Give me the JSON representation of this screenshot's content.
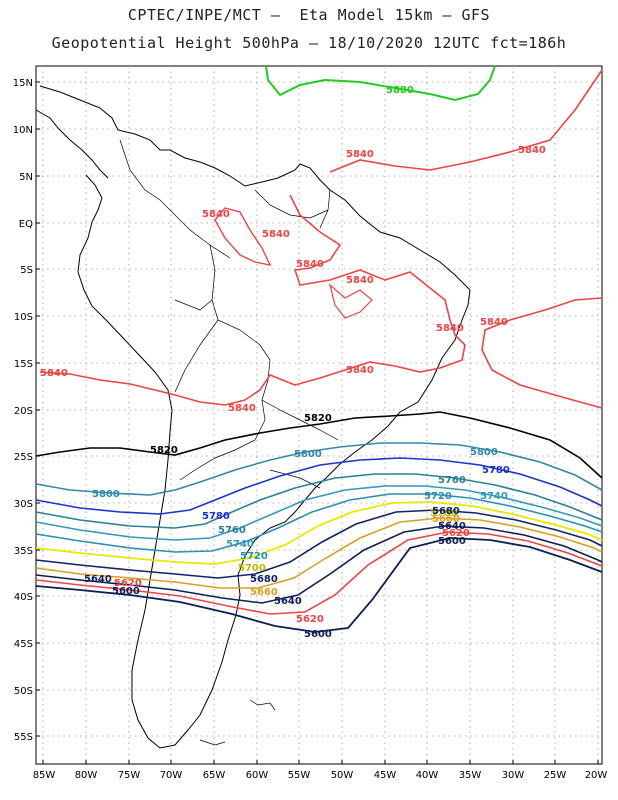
{
  "header": {
    "title_line1": "CPTEC/INPE/MCT –  Eta Model 15km – GFS",
    "title_line2": "Geopotential Height 500hPa – 18/10/2020 12UTC fct=186h"
  },
  "map": {
    "lat_labels": [
      "15N",
      "10N",
      "5N",
      "EQ",
      "5S",
      "10S",
      "15S",
      "20S",
      "25S",
      "30S",
      "35S",
      "40S",
      "45S",
      "50S",
      "55S"
    ],
    "lon_labels": [
      "85W",
      "80W",
      "75W",
      "70W",
      "65W",
      "60W",
      "55W",
      "50W",
      "45W",
      "40W",
      "35W",
      "30W",
      "25W",
      "20W"
    ],
    "contours": [
      {
        "value": "5880",
        "color": "#22cc22",
        "labels": [
          "5880"
        ]
      },
      {
        "value": "5840",
        "color": "#ee4444",
        "labels": [
          "5840",
          "5840",
          "5840",
          "5840",
          "5840",
          "5840",
          "5840",
          "5840",
          "5840",
          "5840",
          "5840"
        ]
      },
      {
        "value": "5820",
        "color": "#000000",
        "labels": [
          "5820",
          "5820"
        ]
      },
      {
        "value": "5800",
        "color": "#3388aa",
        "labels": [
          "5800",
          "5800"
        ]
      },
      {
        "value": "5780",
        "color": "#1a33cc",
        "labels": [
          "5780",
          "5780"
        ]
      },
      {
        "value": "5760",
        "color": "#2a7f99",
        "labels": [
          "5760",
          "5760"
        ]
      },
      {
        "value": "5740",
        "color": "#3399bb",
        "labels": [
          "5740",
          "5740"
        ]
      },
      {
        "value": "5720",
        "color": "#2b8fb0",
        "labels": [
          "5720",
          "5720"
        ]
      },
      {
        "value": "5700",
        "color": "#e8e800",
        "labels": [
          "5700",
          "5700"
        ]
      },
      {
        "value": "5680",
        "color": "#112266",
        "labels": [
          "5680",
          "5680"
        ]
      },
      {
        "value": "5660",
        "color": "#d9a020",
        "labels": [
          "5660",
          "5660"
        ]
      },
      {
        "value": "5640",
        "color": "#0b1e55",
        "labels": [
          "5640",
          "5640"
        ]
      },
      {
        "value": "5620",
        "color": "#ee4444",
        "labels": [
          "5620",
          "5620"
        ]
      },
      {
        "value": "5600",
        "color": "#0b1e55",
        "labels": [
          "5600",
          "5600"
        ]
      }
    ]
  }
}
